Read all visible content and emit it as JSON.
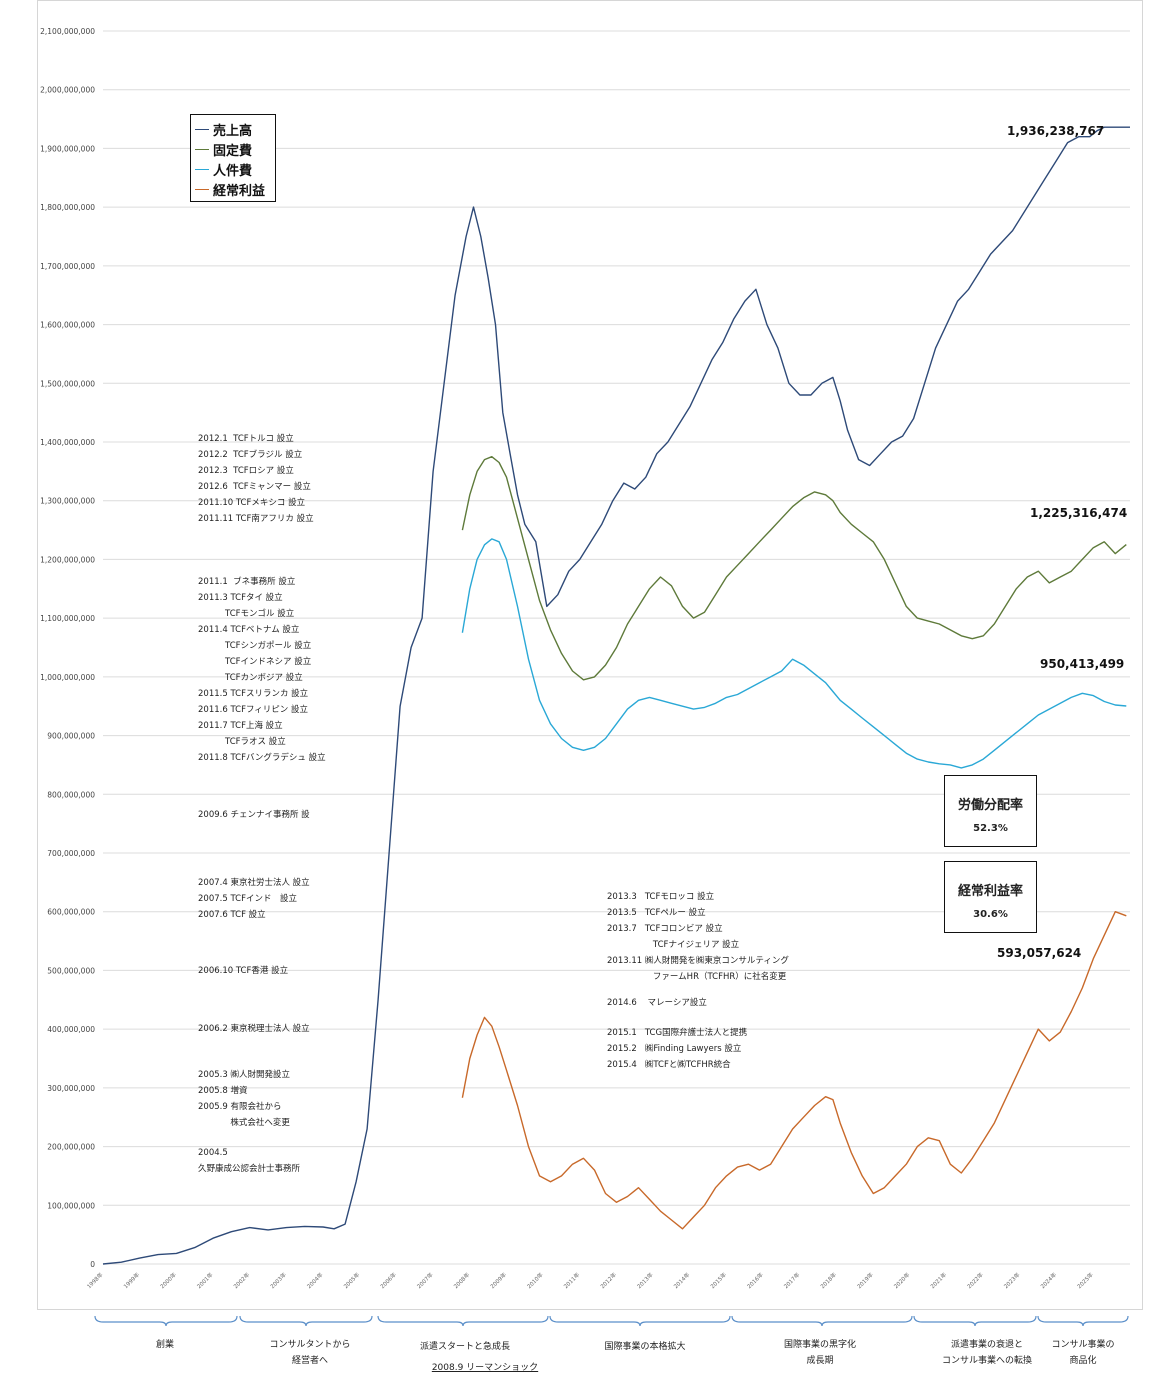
{
  "chart_data": {
    "type": "line",
    "ylim": [
      0,
      2100000000
    ],
    "y_ticks": [
      "0",
      "100,000,000",
      "200,000,000",
      "300,000,000",
      "400,000,000",
      "500,000,000",
      "600,000,000",
      "700,000,000",
      "800,000,000",
      "900,000,000",
      "1,000,000,000",
      "1,100,000,000",
      "1,200,000,000",
      "1,300,000,000",
      "1,400,000,000",
      "1,500,000,000",
      "1,600,000,000",
      "1,700,000,000",
      "1,800,000,000",
      "1,900,000,000",
      "2,000,000,000",
      "2,100,000,000"
    ],
    "x_ticks": [
      "1998年",
      "1999年",
      "2000年",
      "2001年",
      "2002年",
      "2003年",
      "2004年",
      "2005年",
      "2006年",
      "2007年",
      "2008年",
      "2009年",
      "2010年",
      "2011年",
      "2012年",
      "2013年",
      "2014年",
      "2015年",
      "2016年",
      "2017年",
      "2018年",
      "2019年",
      "2020年",
      "2021年",
      "2022年",
      "2023年",
      "2024年",
      "2025年"
    ],
    "grid": true,
    "legend_position": "top-left",
    "series": [
      {
        "name": "売上高",
        "color": "#2e4a78",
        "x": [
          1998.0,
          1998.5,
          1999.0,
          1999.5,
          2000.0,
          2000.5,
          2001.0,
          2001.5,
          2002.0,
          2002.5,
          2003.0,
          2003.5,
          2004.0,
          2004.3,
          2004.6,
          2004.9,
          2005.2,
          2005.5,
          2005.8,
          2006.1,
          2006.4,
          2006.7,
          2007.0,
          2007.3,
          2007.6,
          2007.9,
          2008.1,
          2008.3,
          2008.5,
          2008.7,
          2008.9,
          2009.1,
          2009.3,
          2009.5,
          2009.8,
          2010.1,
          2010.4,
          2010.7,
          2011.0,
          2011.3,
          2011.6,
          2011.9,
          2012.2,
          2012.5,
          2012.8,
          2013.1,
          2013.4,
          2013.7,
          2014.0,
          2014.3,
          2014.6,
          2014.9,
          2015.2,
          2015.5,
          2015.8,
          2016.1,
          2016.4,
          2016.7,
          2017.0,
          2017.3,
          2017.6,
          2017.9,
          2018.1,
          2018.3,
          2018.6,
          2018.9,
          2019.2,
          2019.5,
          2019.8,
          2020.1,
          2020.4,
          2020.7,
          2021.0,
          2021.3,
          2021.6,
          2021.9,
          2022.2,
          2022.5,
          2022.8,
          2023.1,
          2023.4,
          2023.7,
          2024.0,
          2024.3,
          2024.6,
          2024.9,
          2025.1,
          2025.3,
          2025.5,
          2025.7,
          2025.9,
          2026.0
        ],
        "y": [
          0,
          3000000,
          10000000,
          16000000,
          18000000,
          28000000,
          44000000,
          55000000,
          62000000,
          58000000,
          62000000,
          64000000,
          63000000,
          60000000,
          68000000,
          140000000,
          230000000,
          450000000,
          700000000,
          950000000,
          1050000000,
          1100000000,
          1350000000,
          1500000000,
          1650000000,
          1750000000,
          1800000000,
          1750000000,
          1680000000,
          1600000000,
          1450000000,
          1380000000,
          1310000000,
          1260000000,
          1230000000,
          1120000000,
          1140000000,
          1180000000,
          1200000000,
          1230000000,
          1260000000,
          1300000000,
          1330000000,
          1320000000,
          1340000000,
          1380000000,
          1400000000,
          1430000000,
          1460000000,
          1500000000,
          1540000000,
          1570000000,
          1610000000,
          1640000000,
          1660000000,
          1600000000,
          1560000000,
          1500000000,
          1480000000,
          1480000000,
          1500000000,
          1510000000,
          1470000000,
          1420000000,
          1370000000,
          1360000000,
          1380000000,
          1400000000,
          1410000000,
          1440000000,
          1500000000,
          1560000000,
          1600000000,
          1640000000,
          1660000000,
          1690000000,
          1720000000,
          1740000000,
          1760000000,
          1790000000,
          1820000000,
          1850000000,
          1880000000,
          1910000000,
          1920000000,
          1920000000,
          1930000000,
          1936238767,
          1936238767,
          1936238767,
          1936238767,
          1936238767
        ],
        "end_label": "1,936,238,767"
      },
      {
        "name": "固定費",
        "color": "#5e7a3a",
        "x": [
          2007.8,
          2008.0,
          2008.2,
          2008.4,
          2008.6,
          2008.8,
          2009.0,
          2009.3,
          2009.6,
          2009.9,
          2010.2,
          2010.5,
          2010.8,
          2011.1,
          2011.4,
          2011.7,
          2012.0,
          2012.3,
          2012.6,
          2012.9,
          2013.2,
          2013.5,
          2013.8,
          2014.1,
          2014.4,
          2014.7,
          2015.0,
          2015.3,
          2015.6,
          2015.9,
          2016.2,
          2016.5,
          2016.8,
          2017.1,
          2017.4,
          2017.7,
          2017.9,
          2018.1,
          2018.4,
          2018.7,
          2019.0,
          2019.3,
          2019.6,
          2019.9,
          2020.2,
          2020.5,
          2020.8,
          2021.1,
          2021.4,
          2021.7,
          2022.0,
          2022.3,
          2022.6,
          2022.9,
          2023.2,
          2023.5,
          2023.8,
          2024.1,
          2024.4,
          2024.7,
          2025.0,
          2025.3,
          2025.6,
          2025.9
        ],
        "y": [
          1250000000,
          1310000000,
          1350000000,
          1370000000,
          1375000000,
          1365000000,
          1340000000,
          1270000000,
          1200000000,
          1130000000,
          1080000000,
          1040000000,
          1010000000,
          995000000,
          1000000000,
          1020000000,
          1050000000,
          1090000000,
          1120000000,
          1150000000,
          1170000000,
          1155000000,
          1120000000,
          1100000000,
          1110000000,
          1140000000,
          1170000000,
          1190000000,
          1210000000,
          1230000000,
          1250000000,
          1270000000,
          1290000000,
          1305000000,
          1315000000,
          1310000000,
          1300000000,
          1280000000,
          1260000000,
          1245000000,
          1230000000,
          1200000000,
          1160000000,
          1120000000,
          1100000000,
          1095000000,
          1090000000,
          1080000000,
          1070000000,
          1065000000,
          1070000000,
          1090000000,
          1120000000,
          1150000000,
          1170000000,
          1180000000,
          1160000000,
          1170000000,
          1180000000,
          1200000000,
          1220000000,
          1230000000,
          1210000000,
          1225316474
        ],
        "end_label": "1,225,316,474"
      },
      {
        "name": "人件費",
        "color": "#2aa8d6",
        "x": [
          2007.8,
          2008.0,
          2008.2,
          2008.4,
          2008.6,
          2008.8,
          2009.0,
          2009.3,
          2009.6,
          2009.9,
          2010.2,
          2010.5,
          2010.8,
          2011.1,
          2011.4,
          2011.7,
          2012.0,
          2012.3,
          2012.6,
          2012.9,
          2013.2,
          2013.5,
          2013.8,
          2014.1,
          2014.4,
          2014.7,
          2015.0,
          2015.3,
          2015.6,
          2015.9,
          2016.2,
          2016.5,
          2016.8,
          2017.1,
          2017.4,
          2017.7,
          2017.9,
          2018.1,
          2018.4,
          2018.7,
          2019.0,
          2019.3,
          2019.6,
          2019.9,
          2020.2,
          2020.5,
          2020.8,
          2021.1,
          2021.4,
          2021.7,
          2022.0,
          2022.3,
          2022.6,
          2022.9,
          2023.2,
          2023.5,
          2023.8,
          2024.1,
          2024.4,
          2024.7,
          2025.0,
          2025.3,
          2025.6,
          2025.9
        ],
        "y": [
          1075000000,
          1150000000,
          1200000000,
          1225000000,
          1235000000,
          1230000000,
          1200000000,
          1120000000,
          1030000000,
          960000000,
          920000000,
          895000000,
          880000000,
          875000000,
          880000000,
          895000000,
          920000000,
          945000000,
          960000000,
          965000000,
          960000000,
          955000000,
          950000000,
          945000000,
          948000000,
          955000000,
          965000000,
          970000000,
          980000000,
          990000000,
          1000000000,
          1010000000,
          1030000000,
          1020000000,
          1005000000,
          990000000,
          975000000,
          960000000,
          945000000,
          930000000,
          915000000,
          900000000,
          885000000,
          870000000,
          860000000,
          855000000,
          852000000,
          850000000,
          845000000,
          850000000,
          860000000,
          875000000,
          890000000,
          905000000,
          920000000,
          935000000,
          945000000,
          955000000,
          965000000,
          972000000,
          968000000,
          958000000,
          952000000,
          950413499
        ],
        "end_label": "950,413,499"
      },
      {
        "name": "経常利益",
        "color": "#c8692a",
        "x": [
          2007.8,
          2008.0,
          2008.2,
          2008.4,
          2008.6,
          2008.8,
          2009.0,
          2009.3,
          2009.6,
          2009.9,
          2010.2,
          2010.5,
          2010.8,
          2011.1,
          2011.4,
          2011.7,
          2012.0,
          2012.3,
          2012.6,
          2012.9,
          2013.2,
          2013.5,
          2013.8,
          2014.1,
          2014.4,
          2014.7,
          2015.0,
          2015.3,
          2015.6,
          2015.9,
          2016.2,
          2016.5,
          2016.8,
          2017.1,
          2017.4,
          2017.7,
          2017.9,
          2018.1,
          2018.4,
          2018.7,
          2019.0,
          2019.3,
          2019.6,
          2019.9,
          2020.2,
          2020.5,
          2020.8,
          2021.1,
          2021.4,
          2021.7,
          2022.0,
          2022.3,
          2022.6,
          2022.9,
          2023.2,
          2023.5,
          2023.8,
          2024.1,
          2024.4,
          2024.7,
          2025.0,
          2025.3,
          2025.6,
          2025.9
        ],
        "y": [
          283000000,
          350000000,
          390000000,
          420000000,
          405000000,
          370000000,
          330000000,
          270000000,
          200000000,
          150000000,
          140000000,
          150000000,
          170000000,
          180000000,
          160000000,
          120000000,
          105000000,
          115000000,
          130000000,
          110000000,
          90000000,
          75000000,
          60000000,
          80000000,
          100000000,
          130000000,
          150000000,
          165000000,
          170000000,
          160000000,
          170000000,
          200000000,
          230000000,
          250000000,
          270000000,
          285000000,
          280000000,
          240000000,
          190000000,
          150000000,
          120000000,
          130000000,
          150000000,
          170000000,
          200000000,
          215000000,
          210000000,
          170000000,
          155000000,
          180000000,
          210000000,
          240000000,
          280000000,
          320000000,
          360000000,
          400000000,
          380000000,
          395000000,
          430000000,
          470000000,
          520000000,
          560000000,
          600000000,
          593057624
        ],
        "end_label": "593,057,624"
      }
    ]
  },
  "annotations": [
    "2012.1  TCFトルコ 設立\n2012.2  TCFブラジル 設立\n2012.3  TCFロシア 設立\n2012.6  TCFミャンマー 設立\n2011.10 TCFメキシコ 設立\n2011.11 TCF南アフリカ 設立",
    "2011.1  ブネ事務所 設立\n2011.3 TCFタイ 設立\n          TCFモンゴル 設立\n2011.4 TCFベトナム 設立\n          TCFシンガポール 設立\n          TCFインドネシア 設立\n          TCFカンボジア 設立\n2011.5 TCFスリランカ 設立\n2011.6 TCFフィリピン 設立\n2011.7 TCF上海 設立\n          TCFラオス 設立\n2011.8 TCFバングラデシュ 設立",
    "2009.6 チェンナイ事務所 設",
    "2007.4 東京社労士法人 設立\n2007.5 TCFインド　設立\n2007.6 TCF 設立",
    "2006.10 TCF香港 設立",
    "2006.2 東京税理士法人 設立",
    "2005.3 ㈱人財開発設立\n2005.8 増資\n2005.9 有限会社から\n            株式会社へ変更",
    "2004.5\n久野康成公認会計士事務所",
    "2013.3   TCFモロッコ 設立\n2013.5   TCFペルー 設立\n2013.7   TCFコロンビア 設立\n                 TCFナイジェリア 設立\n2013.11 ㈱人財開発を㈱東京コンサルティング\n                 ファームHR（TCFHR）に社名変更",
    "2014.6    マレーシア設立",
    "2015.1   TCG国際弁護士法人と提携\n2015.2   ㈱Finding Lawyers 設立\n2015.4   ㈱TCFと㈱TCFHR統合"
  ],
  "ratio_boxes": [
    {
      "title": "労働分配率",
      "value": "52.3%"
    },
    {
      "title": "経常利益率",
      "value": "30.6%"
    }
  ],
  "phases": [
    {
      "label": "創業"
    },
    {
      "label": "コンサルタントから\n経営者へ"
    },
    {
      "label": "派遣スタートと急成長",
      "sub": "2008.9 リーマンショック"
    },
    {
      "label": "国際事業の本格拡大"
    },
    {
      "label": "国際事業の黒字化\n成長期"
    },
    {
      "label": "派遣事業の衰退と\nコンサル事業への転換"
    },
    {
      "label": "コンサル事業の\n商品化"
    }
  ]
}
